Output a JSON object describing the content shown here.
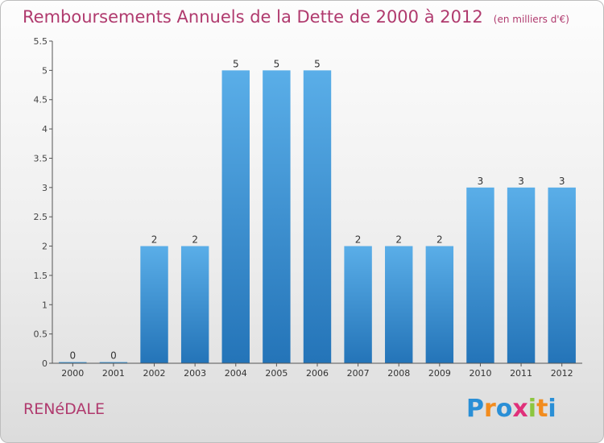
{
  "title": "Remboursements Annuels de la Dette de 2000 à 2012",
  "unit_note": "(en milliers d'€)",
  "town": "RENéDALE",
  "logo": {
    "letters": [
      "P",
      "r",
      "o",
      "x",
      "i",
      "t",
      "i"
    ],
    "colors": [
      "#2a8fd6",
      "#f28c1e",
      "#2a8fd6",
      "#e0307a",
      "#8cc63f",
      "#f28c1e",
      "#2a8fd6"
    ]
  },
  "chart_data": {
    "type": "bar",
    "categories": [
      "2000",
      "2001",
      "2002",
      "2003",
      "2004",
      "2005",
      "2006",
      "2007",
      "2008",
      "2009",
      "2010",
      "2011",
      "2012"
    ],
    "values": [
      0,
      0,
      2,
      2,
      5,
      5,
      5,
      2,
      2,
      2,
      3,
      3,
      3
    ],
    "data_labels": [
      "0",
      "0",
      "2",
      "2",
      "5",
      "5",
      "5",
      "2",
      "2",
      "2",
      "3",
      "3",
      "3"
    ],
    "yticks": [
      "0",
      "0.5",
      "1",
      "1.5",
      "2",
      "2.5",
      "3",
      "3.5",
      "4",
      "4.5",
      "5",
      "5.5"
    ],
    "ylim": [
      0,
      5.5
    ],
    "bar_color": "#3f97d8",
    "grid": false
  }
}
